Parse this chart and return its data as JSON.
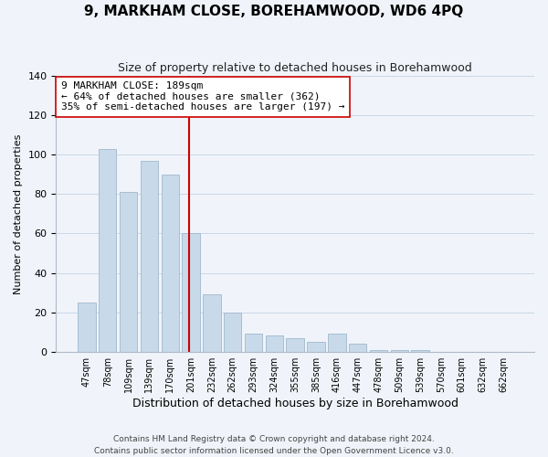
{
  "title": "9, MARKHAM CLOSE, BOREHAMWOOD, WD6 4PQ",
  "subtitle": "Size of property relative to detached houses in Borehamwood",
  "xlabel": "Distribution of detached houses by size in Borehamwood",
  "ylabel": "Number of detached properties",
  "bar_labels": [
    "47sqm",
    "78sqm",
    "109sqm",
    "139sqm",
    "170sqm",
    "201sqm",
    "232sqm",
    "262sqm",
    "293sqm",
    "324sqm",
    "355sqm",
    "385sqm",
    "416sqm",
    "447sqm",
    "478sqm",
    "509sqm",
    "539sqm",
    "570sqm",
    "601sqm",
    "632sqm",
    "662sqm"
  ],
  "bar_values": [
    25,
    103,
    81,
    97,
    90,
    60,
    29,
    20,
    9,
    8,
    7,
    5,
    9,
    4,
    1,
    1,
    1,
    0,
    0,
    0,
    0
  ],
  "bar_color": "#c8daea",
  "bar_edge_color": "#a0b8cc",
  "vline_index": 5,
  "vline_color": "#cc0000",
  "annotation_line1": "9 MARKHAM CLOSE: 189sqm",
  "annotation_line2": "← 64% of detached houses are smaller (362)",
  "annotation_line3": "35% of semi-detached houses are larger (197) →",
  "annotation_box_color": "white",
  "annotation_box_edge": "#cc0000",
  "ylim": [
    0,
    140
  ],
  "yticks": [
    0,
    20,
    40,
    60,
    80,
    100,
    120,
    140
  ],
  "footer_line1": "Contains HM Land Registry data © Crown copyright and database right 2024.",
  "footer_line2": "Contains public sector information licensed under the Open Government Licence v3.0.",
  "bg_color": "#f0f4fa",
  "grid_color": "#c8d8e8"
}
